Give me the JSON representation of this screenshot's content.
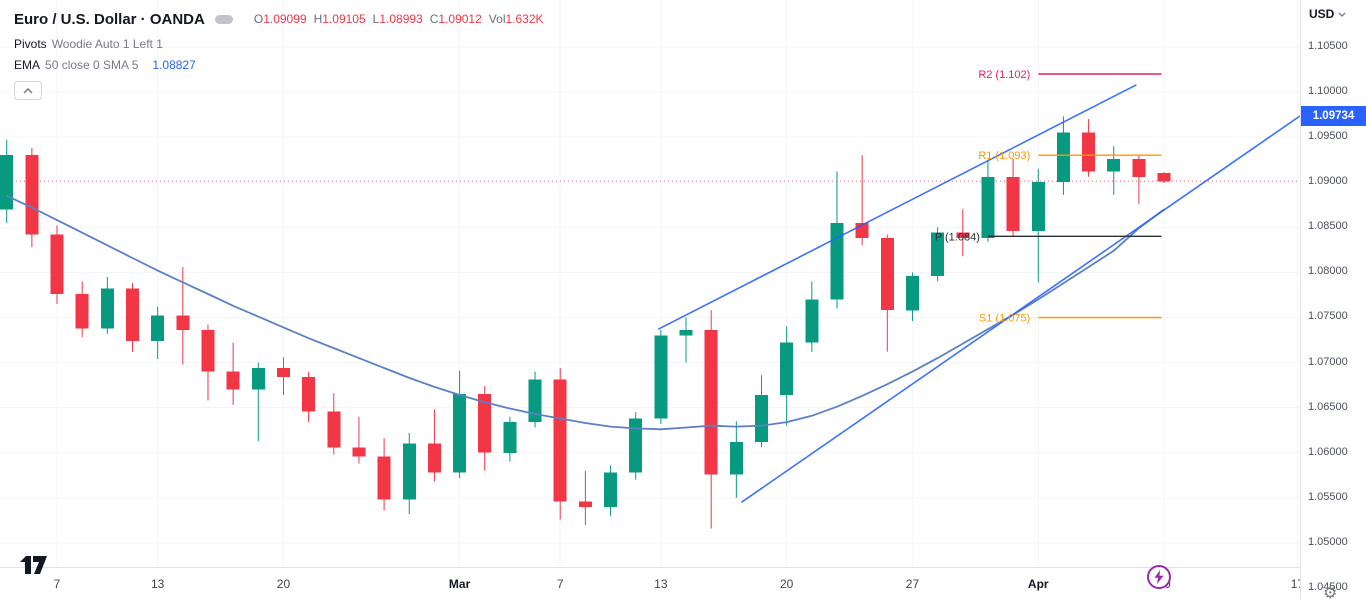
{
  "header": {
    "symbol_title": "Euro / U.S. Dollar · OANDA",
    "ohlc": {
      "o_label": "O",
      "o": "1.09099",
      "h_label": "H",
      "h": "1.09105",
      "l_label": "L",
      "l": "1.08993",
      "c_label": "C",
      "c": "1.09012",
      "vol_label": "Vol",
      "vol": "1.632K"
    },
    "indicator_pivots": {
      "name": "Pivots",
      "params": "Woodie Auto 1 Left 1"
    },
    "indicator_ema": {
      "name": "EMA",
      "params": "50 close 0 SMA 5",
      "value": "1.08827"
    }
  },
  "controls": {
    "currency": "USD"
  },
  "chart_data": {
    "type": "candlestick",
    "title": "Euro / U.S. Dollar · OANDA",
    "price_ticks": [
      {
        "label": "1.10500",
        "price": 1.105
      },
      {
        "label": "1.10000",
        "price": 1.1
      },
      {
        "label": "1.09500",
        "price": 1.095
      },
      {
        "label": "1.09000",
        "price": 1.09
      },
      {
        "label": "1.08500",
        "price": 1.085
      },
      {
        "label": "1.08000",
        "price": 1.08
      },
      {
        "label": "1.07500",
        "price": 1.075
      },
      {
        "label": "1.07000",
        "price": 1.07
      },
      {
        "label": "1.06500",
        "price": 1.065
      },
      {
        "label": "1.06000",
        "price": 1.06
      },
      {
        "label": "1.05500",
        "price": 1.055
      },
      {
        "label": "1.05000",
        "price": 1.05
      },
      {
        "label": "1.04500",
        "price": 1.045
      }
    ],
    "time_ticks": [
      {
        "i": 2,
        "label": "7",
        "major": false
      },
      {
        "i": 6,
        "label": "13",
        "major": false
      },
      {
        "i": 11,
        "label": "20",
        "major": false
      },
      {
        "i": 18,
        "label": "Mar",
        "major": true
      },
      {
        "i": 22,
        "label": "7",
        "major": false
      },
      {
        "i": 26,
        "label": "13",
        "major": false
      },
      {
        "i": 31,
        "label": "20",
        "major": false
      },
      {
        "i": 36,
        "label": "27",
        "major": false
      },
      {
        "i": 41,
        "label": "Apr",
        "major": true
      },
      {
        "i": 46,
        "label": "10",
        "major": false
      },
      {
        "i": 51.3,
        "label": "17",
        "major": false
      }
    ],
    "candles": [
      [
        1.087,
        1.0947,
        1.0855,
        1.093
      ],
      [
        1.093,
        1.0938,
        1.0828,
        1.0842
      ],
      [
        1.0842,
        1.0852,
        1.0765,
        1.0776
      ],
      [
        1.0776,
        1.079,
        1.0728,
        1.0738
      ],
      [
        1.0738,
        1.0795,
        1.0732,
        1.0782
      ],
      [
        1.0782,
        1.0788,
        1.0712,
        1.0724
      ],
      [
        1.0724,
        1.0762,
        1.0704,
        1.0752
      ],
      [
        1.0752,
        1.0806,
        1.0698,
        1.0736
      ],
      [
        1.0736,
        1.0742,
        1.0658,
        1.069
      ],
      [
        1.069,
        1.0722,
        1.0653,
        1.067
      ],
      [
        1.067,
        1.07,
        1.0613,
        1.0694
      ],
      [
        1.0694,
        1.0706,
        1.0664,
        1.0684
      ],
      [
        1.0684,
        1.069,
        1.0634,
        1.0646
      ],
      [
        1.0646,
        1.0666,
        1.0598,
        1.0606
      ],
      [
        1.0606,
        1.064,
        1.0588,
        1.0596
      ],
      [
        1.0596,
        1.0616,
        1.0536,
        1.0548
      ],
      [
        1.0548,
        1.0622,
        1.0532,
        1.061
      ],
      [
        1.061,
        1.0648,
        1.0568,
        1.0578
      ],
      [
        1.0578,
        1.0691,
        1.0572,
        1.0665
      ],
      [
        1.0665,
        1.0674,
        1.058,
        1.06
      ],
      [
        1.06,
        1.064,
        1.059,
        1.0634
      ],
      [
        1.0634,
        1.069,
        1.0628,
        1.0681
      ],
      [
        1.0681,
        1.0694,
        1.0526,
        1.0546
      ],
      [
        1.0546,
        1.058,
        1.052,
        1.054
      ],
      [
        1.054,
        1.0586,
        1.053,
        1.0578
      ],
      [
        1.0578,
        1.0645,
        1.057,
        1.0638
      ],
      [
        1.0638,
        1.0736,
        1.0632,
        1.073
      ],
      [
        1.073,
        1.075,
        1.07,
        1.0736
      ],
      [
        1.0736,
        1.0758,
        1.0516,
        1.0576
      ],
      [
        1.0576,
        1.0635,
        1.055,
        1.0612
      ],
      [
        1.0612,
        1.0686,
        1.0606,
        1.0664
      ],
      [
        1.0664,
        1.074,
        1.063,
        1.0722
      ],
      [
        1.0722,
        1.079,
        1.0712,
        1.077
      ],
      [
        1.077,
        1.0912,
        1.076,
        1.0855
      ],
      [
        1.0855,
        1.093,
        1.083,
        1.0838
      ],
      [
        1.0838,
        1.0842,
        1.0712,
        1.0758
      ],
      [
        1.0758,
        1.08,
        1.0746,
        1.0796
      ],
      [
        1.0796,
        1.085,
        1.079,
        1.0844
      ],
      [
        1.0844,
        1.087,
        1.0818,
        1.0838
      ],
      [
        1.0838,
        1.0925,
        1.0834,
        1.0906
      ],
      [
        1.0906,
        1.0926,
        1.084,
        1.0846
      ],
      [
        1.0846,
        1.0915,
        1.0789,
        1.09
      ],
      [
        1.09,
        1.0973,
        1.0886,
        1.0955
      ],
      [
        1.0955,
        1.097,
        1.0906,
        1.0912
      ],
      [
        1.0912,
        1.094,
        1.0886,
        1.0926
      ],
      [
        1.0926,
        1.093,
        1.0876,
        1.0906
      ],
      [
        1.091,
        1.0911,
        1.0899,
        1.0901
      ]
    ],
    "ema_values": [
      1.0885,
      1.0872,
      1.0858,
      1.0844,
      1.083,
      1.0816,
      1.0802,
      1.0789,
      1.0776,
      1.0763,
      1.0751,
      1.0739,
      1.0727,
      1.0716,
      1.0705,
      1.0694,
      1.0683,
      1.0673,
      1.0664,
      1.0656,
      1.0649,
      1.0643,
      1.0638,
      1.0633,
      1.0629,
      1.0627,
      1.0626,
      1.0628,
      1.063,
      1.0629,
      1.063,
      1.0634,
      1.0641,
      1.0651,
      1.0663,
      1.0676,
      1.069,
      1.0705,
      1.0721,
      1.0737,
      1.0753,
      1.077,
      1.0788,
      1.0806,
      1.0824,
      1.0849,
      1.087
    ],
    "pivots": [
      {
        "name": "R2",
        "label": "R2 (1.102)",
        "price": 1.102,
        "color": "#e91e63",
        "i1": 41.0,
        "i2": 45.9
      },
      {
        "name": "R1",
        "label": "R1 (1.093)",
        "price": 1.093,
        "color": "#ff9800",
        "i1": 41.0,
        "i2": 45.9
      },
      {
        "name": "P",
        "label": "P (1.084)",
        "price": 1.084,
        "color": "#2a2e39",
        "i1": 39.0,
        "i2": 45.9
      },
      {
        "name": "S1",
        "label": "S1 (1.075)",
        "price": 1.075,
        "color": "#ff9800",
        "i1": 41.0,
        "i2": 45.9
      }
    ],
    "trendlines": [
      {
        "i1": 25.9,
        "p1": 1.0737,
        "i2": 44.9,
        "p2": 1.1008
      },
      {
        "i1": 29.2,
        "p1": 1.0545,
        "i2": 51.4,
        "p2": 1.09734
      }
    ],
    "current_price": 1.09012,
    "current_price_color": "#f23645",
    "active_price_label": {
      "text": "1.09734",
      "price": 1.09734,
      "bg": "#2962ff"
    },
    "colors": {
      "up": "#089981",
      "down": "#f23645",
      "grid": "#f4f5f8",
      "ema": "#5b80c7",
      "trendline": "#2962ff"
    }
  }
}
